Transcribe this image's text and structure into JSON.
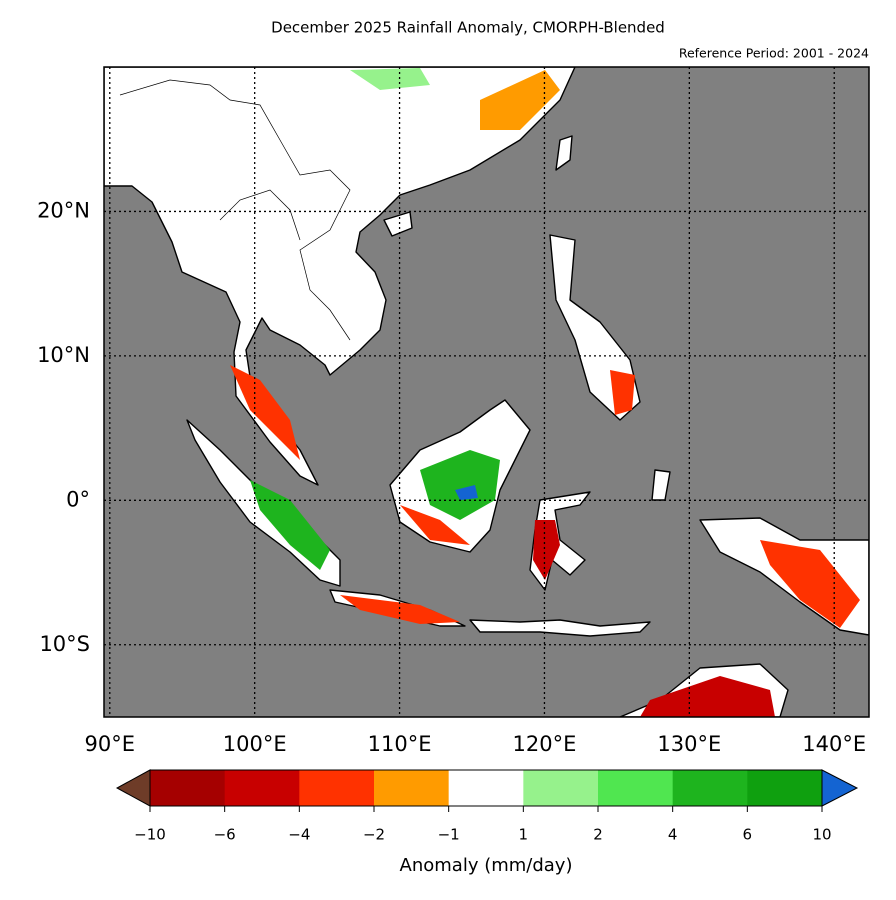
{
  "chart_data": {
    "type": "map",
    "title": "December 2025 Rainfall Anomaly, CMORPH-Blended",
    "subtitle": "Reference Period: 2001 - 2024",
    "xlim": [
      89.6,
      142.4
    ],
    "ylim": [
      -15,
      30
    ],
    "xticks": [
      {
        "value": 90,
        "label": "90°E"
      },
      {
        "value": 100,
        "label": "100°E"
      },
      {
        "value": 110,
        "label": "110°E"
      },
      {
        "value": 120,
        "label": "120°E"
      },
      {
        "value": 130,
        "label": "130°E"
      },
      {
        "value": 140,
        "label": "140°E"
      }
    ],
    "yticks": [
      {
        "value": 20,
        "label": "20°N"
      },
      {
        "value": 10,
        "label": "10°N"
      },
      {
        "value": 0,
        "label": "0°"
      },
      {
        "value": -10,
        "label": "10°S"
      }
    ],
    "grid": true,
    "ocean_color": "#808080",
    "land_color": "#ffffff",
    "colorbar": {
      "label": "Anomaly (mm/day)",
      "ticks": [
        {
          "value": -10,
          "label": "−10"
        },
        {
          "value": -6,
          "label": "−6"
        },
        {
          "value": -4,
          "label": "−4"
        },
        {
          "value": -2,
          "label": "−2"
        },
        {
          "value": -1,
          "label": "−1"
        },
        1,
        2,
        4,
        6,
        10
      ],
      "colors": [
        "#a50000",
        "#c80000",
        "#ff3200",
        "#ff9b00",
        "#ffffff",
        "#96f28c",
        "#50e650",
        "#1eb41e",
        "#0fa00f"
      ],
      "under_color": "#6e3c28",
      "over_color": "#1464d2"
    }
  }
}
